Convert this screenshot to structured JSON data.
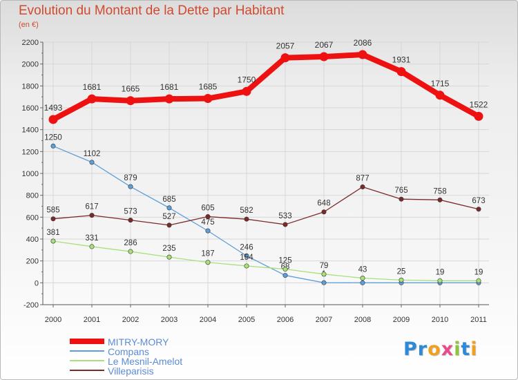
{
  "title": "Evolution du Montant de la Dette par Habitant",
  "subtitle": "(en €)",
  "logo": {
    "text": "Proxiti",
    "letters": [
      {
        "c": "P",
        "color": "#2d8ad6"
      },
      {
        "c": "r",
        "color": "#2d8ad6"
      },
      {
        "c": "o",
        "color": "#f0a020"
      },
      {
        "c": "x",
        "color": "#e84a8a"
      },
      {
        "c": "i",
        "color": "#8cc63f"
      },
      {
        "c": "t",
        "color": "#2d8ad6"
      },
      {
        "c": "i",
        "color": "#f0a020"
      }
    ]
  },
  "chart_data": {
    "type": "line",
    "x": [
      "2000",
      "2001",
      "2002",
      "2003",
      "2004",
      "2005",
      "2006",
      "2007",
      "2008",
      "2009",
      "2010",
      "2011"
    ],
    "ylim": [
      -200,
      2200
    ],
    "yticks": [
      "-200",
      "0",
      "200",
      "400",
      "600",
      "800",
      "1000",
      "1200",
      "1400",
      "1600",
      "1800",
      "2000",
      "2200"
    ],
    "grid": true,
    "legend_position": "bottom-left",
    "series": [
      {
        "name": "MITRY-MORY",
        "color": "#ee1111",
        "values": [
          1493,
          1681,
          1665,
          1681,
          1685,
          1750,
          2057,
          2067,
          2086,
          1931,
          1715,
          1522
        ],
        "labels": [
          "1493",
          "1681",
          "1665",
          "1681",
          "1685",
          "1750",
          "2057",
          "2067",
          "2086",
          "1931",
          "1715",
          "1522"
        ]
      },
      {
        "name": "Compans",
        "color": "#5e9fd8",
        "values": [
          1250,
          1102,
          879,
          685,
          475,
          246,
          68,
          1,
          0,
          0,
          0,
          0
        ],
        "labels": [
          "1250",
          "1102",
          "879",
          "685",
          "475",
          "246",
          "68",
          "1",
          "",
          "",
          "",
          ""
        ]
      },
      {
        "name": "Le Mesnil-Amelot",
        "color": "#a9e07a",
        "values": [
          381,
          331,
          286,
          235,
          187,
          154,
          125,
          79,
          43,
          25,
          19,
          19
        ],
        "labels": [
          "381",
          "331",
          "286",
          "235",
          "187",
          "154",
          "125",
          "79",
          "43",
          "25",
          "19",
          "19"
        ]
      },
      {
        "name": "Villeparisis",
        "color": "#7a2a2a",
        "values": [
          585,
          617,
          573,
          527,
          605,
          582,
          533,
          648,
          877,
          765,
          758,
          673
        ],
        "labels": [
          "585",
          "617",
          "573",
          "527",
          "605",
          "582",
          "533",
          "648",
          "877",
          "765",
          "758",
          "673"
        ]
      }
    ]
  }
}
